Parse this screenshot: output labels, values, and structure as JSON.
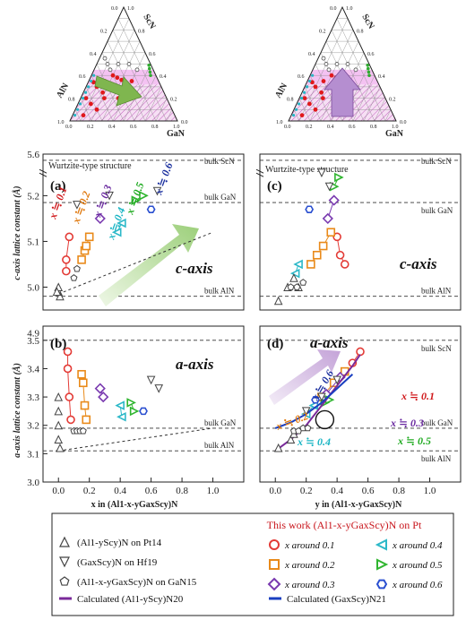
{
  "ternary": {
    "left": {
      "labels": {
        "scy": "ScN",
        "aln": "AlN",
        "gan": "GaN"
      },
      "ticks": [
        "0.0",
        "0.2",
        "0.4",
        "0.6",
        "0.8",
        "1.0"
      ]
    },
    "right": {
      "labels": {
        "scy": "ScN",
        "aln": "AlN",
        "gan": "GaN"
      },
      "ticks": [
        "0.0",
        "0.2",
        "0.4",
        "0.6",
        "0.8",
        "1.0"
      ]
    }
  },
  "panels": {
    "a": {
      "label": "(a)",
      "note": "Wurtzite-type structure",
      "axis_text": "c-axis",
      "ref_scn": "bulk ScN",
      "ref_gan": "bulk GaN",
      "ref_aln": "bulk AlN",
      "x_labels": [
        {
          "text": "x ≒ 0.1",
          "color": "#d0181b"
        },
        {
          "text": "x ≒ 0.2",
          "color": "#e07a10"
        },
        {
          "text": "x ≒ 0.3",
          "color": "#6a2aa0"
        },
        {
          "text": "x ≒ 0.4",
          "color": "#1bb5c4"
        },
        {
          "text": "x ≒ 0.5",
          "color": "#1faa20"
        },
        {
          "text": "x ≒ 0.6",
          "color": "#1a2f9e"
        }
      ]
    },
    "b": {
      "label": "(b)",
      "axis_text": "a-axis",
      "ref_gan": "bulk GaN",
      "ref_aln": "bulk AlN"
    },
    "c": {
      "label": "(c)",
      "note": "Wurtzite-type structure",
      "axis_text": "c-axis",
      "ref_scn": "bulk ScN",
      "ref_gan": "bulk GaN",
      "ref_aln": "bulk AlN"
    },
    "d": {
      "label": "(d)",
      "axis_text": "a-axis",
      "ref_scn": "bulk ScN",
      "ref_gan": "bulk GaN",
      "ref_aln": "bulk AlN",
      "x_labels": [
        {
          "text": "x ≒ 0.1",
          "color": "#d0181b"
        },
        {
          "text": "x ≒ 0.2",
          "color": "#e07a10"
        },
        {
          "text": "x ≒ 0.3",
          "color": "#6a2aa0"
        },
        {
          "text": "x ≒ 0.4",
          "color": "#1bb5c4"
        },
        {
          "text": "x ≒ 0.5",
          "color": "#1faa20"
        },
        {
          "text": "x ≒ 0.6",
          "color": "#1a2f9e"
        }
      ]
    }
  },
  "axes": {
    "c_ylabel": "c-axis lattice constant (Å)",
    "a_ylabel": "a-axis lattice constant (Å)",
    "x_left": "x in (Al1-x-yGaxScy)N",
    "x_right": "y in (Al1-x-yGaxScy)N",
    "x_ticks": [
      "0.0",
      "0.2",
      "0.4",
      "0.6",
      "0.8",
      "1.0"
    ],
    "c_ticks": [
      "4.9",
      "5.0",
      "5.1",
      "5.2",
      "5.6"
    ],
    "a_ticks": [
      "3.0",
      "3.1",
      "3.2",
      "3.3",
      "3.4",
      "3.5"
    ]
  },
  "legend": {
    "title": "This work (Al1-x-yGaxScy)N on Pt",
    "items": [
      {
        "symbol": "triangle-up",
        "color": "#444444",
        "text": "(Al1-yScy)N on Pt14"
      },
      {
        "symbol": "triangle-down",
        "color": "#444444",
        "text": "(GaxScy)N on Hf19"
      },
      {
        "symbol": "pentagon",
        "color": "#444444",
        "text": "(Al1-x-yGaxScy)N on GaN15"
      },
      {
        "symbol": "line",
        "color": "#7a2a9a",
        "text": "Calculated (Al1-yScy)N20"
      },
      {
        "symbol": "line",
        "color": "#1a3fc0",
        "text": "Calculated (GaxScy)N21"
      },
      {
        "symbol": "circle",
        "color": "#e33b36",
        "text": "x around 0.1"
      },
      {
        "symbol": "square",
        "color": "#e98a1a",
        "text": "x around 0.2"
      },
      {
        "symbol": "diamond",
        "color": "#7a3ab0",
        "text": "x around 0.3"
      },
      {
        "symbol": "triangle-left",
        "color": "#2bb8c8",
        "text": "x around 0.4"
      },
      {
        "symbol": "triangle-right",
        "color": "#2fb52f",
        "text": "x around 0.5"
      },
      {
        "symbol": "hexagon",
        "color": "#2a4fd0",
        "text": "x around 0.6"
      }
    ]
  },
  "chart_data": [
    {
      "type": "scatter",
      "panel": "a",
      "xlabel": "x in (Al1-x-yGaxScy)N",
      "ylabel": "c-axis lattice constant (Å)",
      "xlim": [
        -0.1,
        1.2
      ],
      "ylim": [
        4.95,
        5.6
      ],
      "axis_break": [
        5.25,
        5.55
      ],
      "reference_lines": {
        "bulk ScN": 5.58,
        "bulk GaN": 5.185,
        "bulk AlN": 4.98
      },
      "series": [
        {
          "name": "x around 0.1",
          "points": [
            [
              0.05,
              5.035
            ],
            [
              0.05,
              5.06
            ],
            [
              0.07,
              5.11
            ]
          ]
        },
        {
          "name": "x around 0.2",
          "points": [
            [
              0.15,
              5.06
            ],
            [
              0.17,
              5.08
            ],
            [
              0.18,
              5.09
            ],
            [
              0.2,
              5.11
            ]
          ]
        },
        {
          "name": "x around 0.3",
          "points": [
            [
              0.27,
              5.15
            ]
          ]
        },
        {
          "name": "x around 0.4",
          "points": [
            [
              0.38,
              5.12
            ],
            [
              0.41,
              5.14
            ]
          ]
        },
        {
          "name": "x around 0.5",
          "points": [
            [
              0.5,
              5.19
            ],
            [
              0.55,
              5.2
            ]
          ]
        },
        {
          "name": "x around 0.6",
          "points": [
            [
              0.6,
              5.17
            ]
          ]
        }
      ]
    },
    {
      "type": "scatter",
      "panel": "b",
      "xlabel": "x in (Al1-x-yGaxScy)N",
      "ylabel": "a-axis lattice constant (Å)",
      "xlim": [
        -0.1,
        1.2
      ],
      "ylim": [
        3.0,
        3.55
      ],
      "reference_lines": {
        "bulk GaN": 3.19,
        "bulk AlN": 3.11
      },
      "series": [
        {
          "name": "x around 0.1",
          "points": [
            [
              0.06,
              3.46
            ],
            [
              0.06,
              3.4
            ],
            [
              0.07,
              3.3
            ],
            [
              0.08,
              3.22
            ]
          ]
        },
        {
          "name": "x around 0.2",
          "points": [
            [
              0.15,
              3.38
            ],
            [
              0.16,
              3.35
            ],
            [
              0.17,
              3.27
            ],
            [
              0.18,
              3.22
            ]
          ]
        },
        {
          "name": "x around 0.3",
          "points": [
            [
              0.27,
              3.33
            ],
            [
              0.29,
              3.3
            ]
          ]
        },
        {
          "name": "x around 0.4",
          "points": [
            [
              0.4,
              3.27
            ],
            [
              0.41,
              3.23
            ]
          ]
        },
        {
          "name": "x around 0.5",
          "points": [
            [
              0.47,
              3.28
            ],
            [
              0.49,
              3.25
            ]
          ]
        },
        {
          "name": "x around 0.6",
          "points": [
            [
              0.55,
              3.25
            ]
          ]
        }
      ]
    },
    {
      "type": "scatter",
      "panel": "c",
      "xlabel": "y in (Al1-x-yGaxScy)N",
      "ylabel": "c-axis lattice constant (Å)",
      "xlim": [
        -0.1,
        1.2
      ],
      "ylim": [
        4.95,
        5.6
      ],
      "axis_break": [
        5.25,
        5.55
      ],
      "reference_lines": {
        "bulk ScN": 5.58,
        "bulk GaN": 5.185,
        "bulk AlN": 4.98
      },
      "series": [
        {
          "name": "x around 0.1",
          "points": [
            [
              0.4,
              5.11
            ],
            [
              0.42,
              5.07
            ],
            [
              0.45,
              5.05
            ]
          ]
        },
        {
          "name": "x around 0.2",
          "points": [
            [
              0.23,
              5.05
            ],
            [
              0.27,
              5.07
            ],
            [
              0.31,
              5.09
            ],
            [
              0.36,
              5.12
            ]
          ]
        },
        {
          "name": "x around 0.3",
          "points": [
            [
              0.34,
              5.15
            ],
            [
              0.38,
              5.19
            ]
          ]
        },
        {
          "name": "x around 0.4",
          "points": [
            [
              0.13,
              5.03
            ],
            [
              0.15,
              5.05
            ]
          ]
        },
        {
          "name": "x around 0.5",
          "points": [
            [
              0.38,
              5.22
            ],
            [
              0.41,
              5.24
            ]
          ]
        },
        {
          "name": "x around 0.6",
          "points": [
            [
              0.22,
              5.17
            ]
          ]
        }
      ]
    },
    {
      "type": "scatter",
      "panel": "d",
      "xlabel": "y in (Al1-x-yGaxScy)N",
      "ylabel": "a-axis lattice constant (Å)",
      "xlim": [
        -0.1,
        1.2
      ],
      "ylim": [
        3.0,
        3.55
      ],
      "reference_lines": {
        "bulk ScN": 3.5,
        "bulk GaN": 3.19,
        "bulk AlN": 3.11
      },
      "series": [
        {
          "name": "x around 0.1",
          "points": [
            [
              0.5,
              3.42
            ],
            [
              0.55,
              3.46
            ]
          ]
        },
        {
          "name": "x around 0.2",
          "points": [
            [
              0.3,
              3.3
            ],
            [
              0.38,
              3.35
            ],
            [
              0.45,
              3.39
            ]
          ]
        },
        {
          "name": "x around 0.3",
          "points": [
            [
              0.33,
              3.31
            ],
            [
              0.42,
              3.37
            ]
          ]
        },
        {
          "name": "x around 0.4",
          "points": [
            [
              0.2,
              3.24
            ],
            [
              0.25,
              3.27
            ]
          ]
        },
        {
          "name": "x around 0.5",
          "points": [
            [
              0.32,
              3.28
            ],
            [
              0.35,
              3.29
            ]
          ]
        },
        {
          "name": "x around 0.6",
          "points": [
            [
              0.26,
              3.29
            ]
          ]
        }
      ]
    }
  ]
}
